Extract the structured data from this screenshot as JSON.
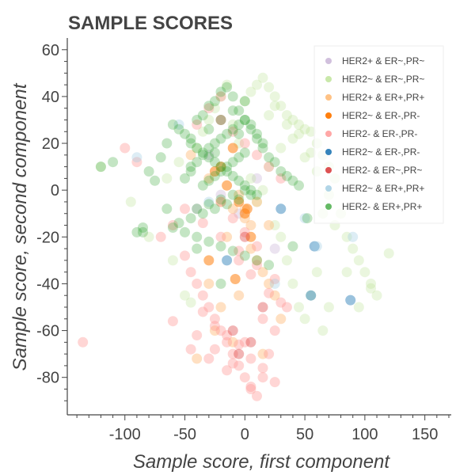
{
  "chart_data": {
    "type": "scatter",
    "title": "SAMPLE SCORES",
    "xlabel": "Sample score, first component",
    "ylabel": "Sample score, second component",
    "xlim": [
      -148,
      172
    ],
    "ylim": [
      -96,
      65
    ],
    "x_ticks": [
      "-100",
      "-50",
      "0",
      "50",
      "100",
      "150"
    ],
    "x_tick_values": [
      -100,
      -50,
      0,
      50,
      100,
      150
    ],
    "y_ticks": [
      "60",
      "40",
      "20",
      "0",
      "-20",
      "-40",
      "-60",
      "-80"
    ],
    "y_tick_values": [
      60,
      40,
      20,
      0,
      -20,
      -40,
      -60,
      -80
    ],
    "legend_position": "top-right",
    "series": [
      {
        "name": "HER2+ & ER~,PR~",
        "color": "#c5b0d5",
        "opacity": 0.35,
        "x": [
          -40,
          -20,
          -5,
          10,
          25,
          -30
        ],
        "y": [
          -8,
          -2,
          -10,
          5,
          -25,
          15
        ]
      },
      {
        "name": "HER2~ & ER~,PR~",
        "color": "#b5e08a",
        "opacity": 0.28,
        "x": [
          -120,
          -95,
          -80,
          -65,
          -55,
          -45,
          -40,
          -35,
          -30,
          -25,
          -20,
          -15,
          -10,
          -5,
          0,
          5,
          10,
          15,
          20,
          25,
          30,
          35,
          40,
          45,
          50,
          55,
          60,
          65,
          70,
          75,
          80,
          85,
          90,
          95,
          100,
          105,
          110,
          120,
          5,
          10,
          15,
          20,
          25,
          30,
          35,
          40,
          45,
          50,
          55,
          60,
          65,
          70,
          -60,
          -50,
          30,
          40,
          50,
          60,
          70,
          20,
          25,
          35,
          45,
          55,
          65,
          75,
          85,
          95,
          105
        ],
        "y": [
          10,
          -5,
          -20,
          5,
          12,
          -48,
          18,
          25,
          30,
          35,
          40,
          45,
          28,
          20,
          38,
          42,
          45,
          48,
          44,
          40,
          36,
          32,
          30,
          28,
          26,
          25,
          20,
          15,
          10,
          5,
          -10,
          -20,
          -25,
          -30,
          -35,
          -40,
          -45,
          -27,
          5,
          -5,
          0,
          10,
          -15,
          -20,
          -30,
          -40,
          -50,
          -55,
          -45,
          -35,
          -60,
          -50,
          -30,
          -45,
          18,
          22,
          14,
          8,
          -2,
          32,
          36,
          28,
          24,
          16,
          -10,
          -15,
          -35,
          -50,
          -42
        ]
      },
      {
        "name": "HER2+ & ER+,PR+",
        "color": "#ffbb78",
        "opacity": 0.45,
        "x": [
          -45,
          -30,
          -20,
          -15,
          -10,
          -5,
          0,
          5,
          10,
          15,
          20,
          25,
          30,
          -25,
          -10,
          0,
          5,
          10,
          -40,
          -20,
          -5,
          15,
          -30,
          20
        ],
        "y": [
          15,
          5,
          -5,
          -20,
          -8,
          -2,
          -12,
          -25,
          -30,
          -35,
          -40,
          -45,
          -55,
          -60,
          -65,
          -8,
          -15,
          -5,
          -72,
          -50,
          -45,
          -70,
          -40,
          -15
        ]
      },
      {
        "name": "HER2~ & ER-,PR-",
        "color": "#ff7f0e",
        "opacity": 0.55,
        "x": [
          -25,
          -15,
          -5,
          0,
          2,
          -10,
          -20,
          5,
          -30,
          -8
        ],
        "y": [
          8,
          2,
          -5,
          -10,
          -8,
          18,
          10,
          -20,
          -30,
          -38
        ]
      },
      {
        "name": "HER2- & ER-,PR-",
        "color": "#ff9896",
        "opacity": 0.4,
        "x": [
          -135,
          -100,
          -90,
          -70,
          -60,
          -50,
          -45,
          -40,
          -35,
          -30,
          -25,
          -20,
          -15,
          -10,
          -5,
          0,
          5,
          10,
          15,
          20,
          25,
          -40,
          -30,
          -20,
          -10,
          0,
          10,
          20,
          30,
          -35,
          -25,
          -15,
          -5,
          5,
          15,
          25,
          -45,
          -30,
          -15,
          0,
          15,
          30,
          -20,
          -10,
          0,
          10,
          -5,
          5,
          -60,
          -40,
          -25,
          -10,
          5,
          20,
          35,
          -50,
          -35,
          -20,
          -5,
          10,
          25
        ],
        "y": [
          -65,
          18,
          12,
          -20,
          -15,
          -28,
          -35,
          -40,
          -45,
          -50,
          -55,
          -60,
          -65,
          -70,
          -75,
          -80,
          -85,
          -88,
          -80,
          -70,
          -60,
          28,
          35,
          40,
          25,
          20,
          15,
          10,
          5,
          -52,
          -58,
          -62,
          -66,
          -72,
          -76,
          -82,
          -68,
          -72,
          -77,
          -65,
          -55,
          -48,
          -5,
          -12,
          -18,
          -24,
          -30,
          -36,
          -56,
          -62,
          -68,
          -74,
          -84,
          -44,
          -50,
          -8,
          -14,
          -20,
          -26,
          -32,
          -38
        ]
      },
      {
        "name": "HER2~ & ER-,PR-",
        "color": "#1f77b4",
        "opacity": 0.45,
        "x": [
          55,
          88,
          30,
          -15,
          58
        ],
        "y": [
          -45,
          -47,
          -8,
          -30,
          -24
        ]
      },
      {
        "name": "HER2- & ER~,PR~",
        "color": "#d62728",
        "opacity": 0.35,
        "x": [
          -10,
          5,
          -5,
          15,
          -20,
          0
        ],
        "y": [
          -60,
          -65,
          -70,
          -50,
          30,
          -20
        ]
      },
      {
        "name": "HER2~ & ER+,PR+",
        "color": "#9ecae1",
        "opacity": 0.35,
        "x": [
          -90,
          -30,
          50,
          60,
          90,
          25,
          -55
        ],
        "y": [
          14,
          -5,
          -12,
          -24,
          -20,
          -40,
          28
        ]
      },
      {
        "name": "HER2- & ER+,PR+",
        "color": "#2ca02c",
        "opacity": 0.28,
        "x": [
          -120,
          -110,
          -90,
          -85,
          -80,
          -75,
          -70,
          -65,
          -60,
          -55,
          -50,
          -45,
          -40,
          -35,
          -30,
          -25,
          -20,
          -15,
          -10,
          -5,
          0,
          5,
          10,
          15,
          20,
          25,
          30,
          35,
          40,
          45,
          -45,
          -40,
          -35,
          -30,
          -25,
          -20,
          -15,
          -10,
          -5,
          0,
          5,
          10,
          -50,
          -45,
          -40,
          -35,
          -30,
          -25,
          -20,
          -15,
          -10,
          -5,
          0,
          5,
          10,
          15,
          -35,
          -30,
          -25,
          -20,
          -15,
          -10,
          -5,
          0,
          -40,
          -30,
          -20,
          -10,
          0,
          -55,
          -45,
          -35,
          -25,
          -15,
          -5,
          5,
          -60,
          -50,
          -40,
          -30,
          -20,
          -10,
          0,
          10,
          20,
          -30,
          -20,
          -10,
          0,
          -85,
          -65,
          -45,
          -25,
          -5,
          -40,
          -20,
          40,
          52
        ],
        "y": [
          10,
          12,
          -18,
          -18,
          8,
          4,
          14,
          20,
          28,
          26,
          24,
          22,
          30,
          32,
          36,
          38,
          42,
          44,
          40,
          34,
          30,
          26,
          22,
          18,
          14,
          12,
          8,
          6,
          4,
          2,
          20,
          18,
          16,
          14,
          12,
          10,
          8,
          6,
          4,
          2,
          0,
          -2,
          5,
          8,
          12,
          15,
          18,
          20,
          22,
          24,
          26,
          28,
          30,
          28,
          24,
          20,
          2,
          4,
          6,
          8,
          10,
          12,
          14,
          16,
          -8,
          -6,
          -4,
          -2,
          0,
          -14,
          -12,
          -10,
          -8,
          -6,
          -4,
          -2,
          -16,
          -18,
          -20,
          -22,
          -24,
          -26,
          -28,
          -30,
          -32,
          26,
          30,
          34,
          38,
          -16,
          -8,
          10,
          16,
          24,
          -25,
          -40,
          -24,
          -12
        ]
      }
    ]
  }
}
